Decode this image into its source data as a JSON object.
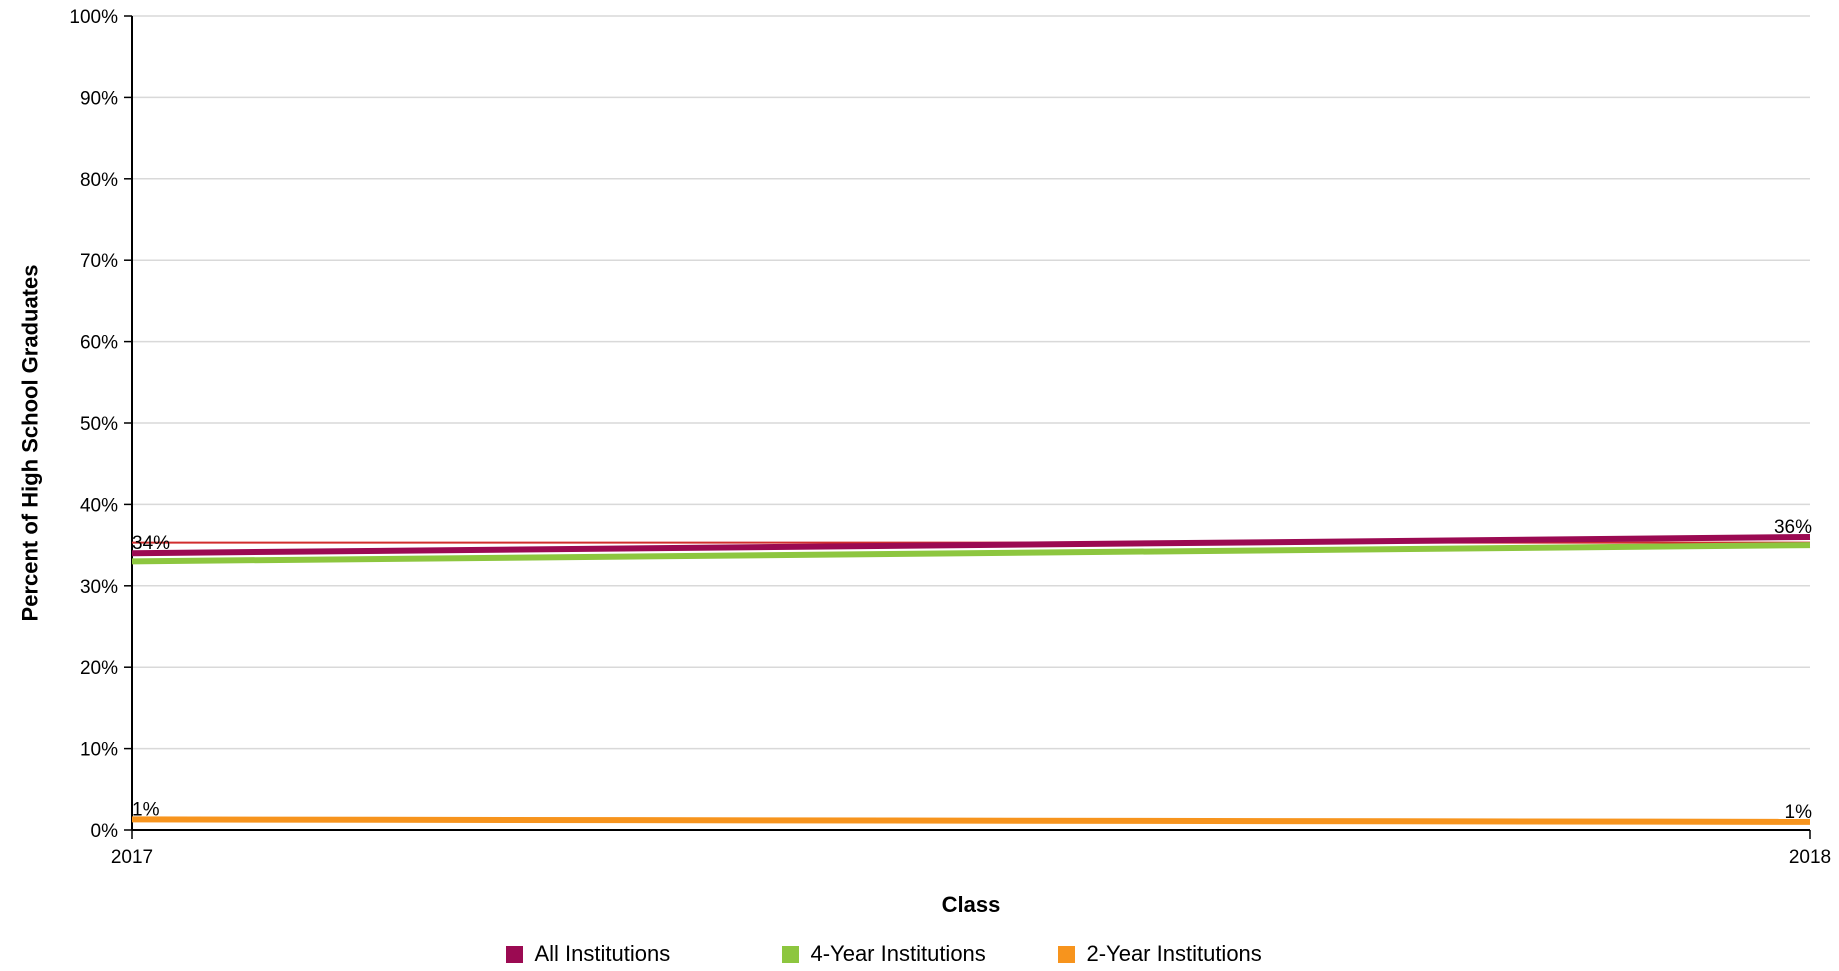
{
  "chart_data": {
    "type": "line",
    "title": "",
    "xlabel": "Class",
    "ylabel": "Percent of High School Graduates",
    "x": [
      "2017",
      "2018"
    ],
    "ylim": [
      0,
      100
    ],
    "ytick_labels": [
      "0%",
      "10%",
      "20%",
      "30%",
      "40%",
      "50%",
      "60%",
      "70%",
      "80%",
      "90%",
      "100%"
    ],
    "grid": true,
    "legend_position": "bottom",
    "series": [
      {
        "name": "All Institutions",
        "color": "#9b0a52",
        "values": [
          34,
          36
        ],
        "labels": [
          "34%",
          "36%"
        ]
      },
      {
        "name": "4-Year Institutions",
        "color": "#8dc63f",
        "values": [
          33,
          35
        ],
        "labels": [
          "",
          ""
        ]
      },
      {
        "name": "2-Year Institutions",
        "color": "#f7941d",
        "values": [
          1.3,
          1.0
        ],
        "labels": [
          "1%",
          "1%"
        ]
      }
    ],
    "reference_line": {
      "value": 35.3,
      "color": "#d12d2d"
    }
  }
}
